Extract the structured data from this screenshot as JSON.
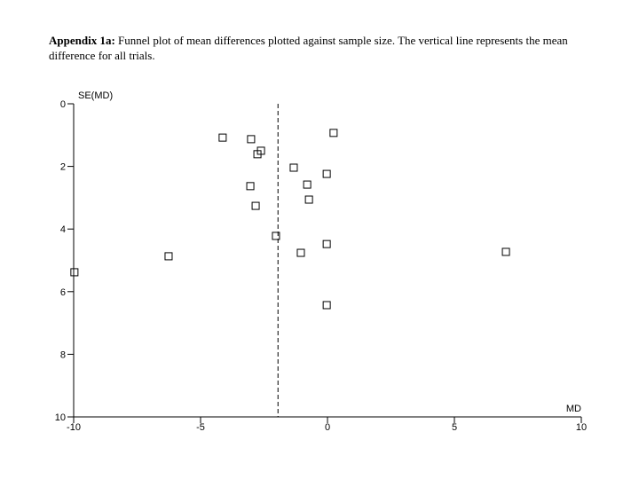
{
  "chart_data": {
    "type": "scatter",
    "caption": {
      "label": "Appendix 1a:",
      "text": "Funnel plot of mean differences plotted against sample size. The vertical line represents the mean difference for all trials."
    },
    "x_label": "MD",
    "y_label": "SE(MD)",
    "xlim": [
      -10,
      10
    ],
    "xticks": [
      -10,
      -5,
      0,
      5,
      10
    ],
    "ylim": [
      10,
      0
    ],
    "yticks": [
      0,
      2,
      4,
      6,
      8,
      10
    ],
    "reference_line": -1.95,
    "series": [
      {
        "color": "#000000",
        "x": [
          -4.13,
          -3.01,
          -2.62,
          -2.76,
          0.24,
          -1.33,
          -0.03,
          -0.8,
          -3.04,
          -0.73,
          -2.83,
          -2.03,
          -0.03,
          -1.05,
          7.03,
          -6.26,
          -9.97,
          -0.03
        ],
        "values": [
          1.08,
          1.13,
          1.5,
          1.61,
          0.93,
          2.04,
          2.24,
          2.58,
          2.63,
          3.06,
          3.26,
          4.22,
          4.48,
          4.76,
          4.73,
          4.87,
          5.38,
          6.43
        ]
      }
    ]
  }
}
